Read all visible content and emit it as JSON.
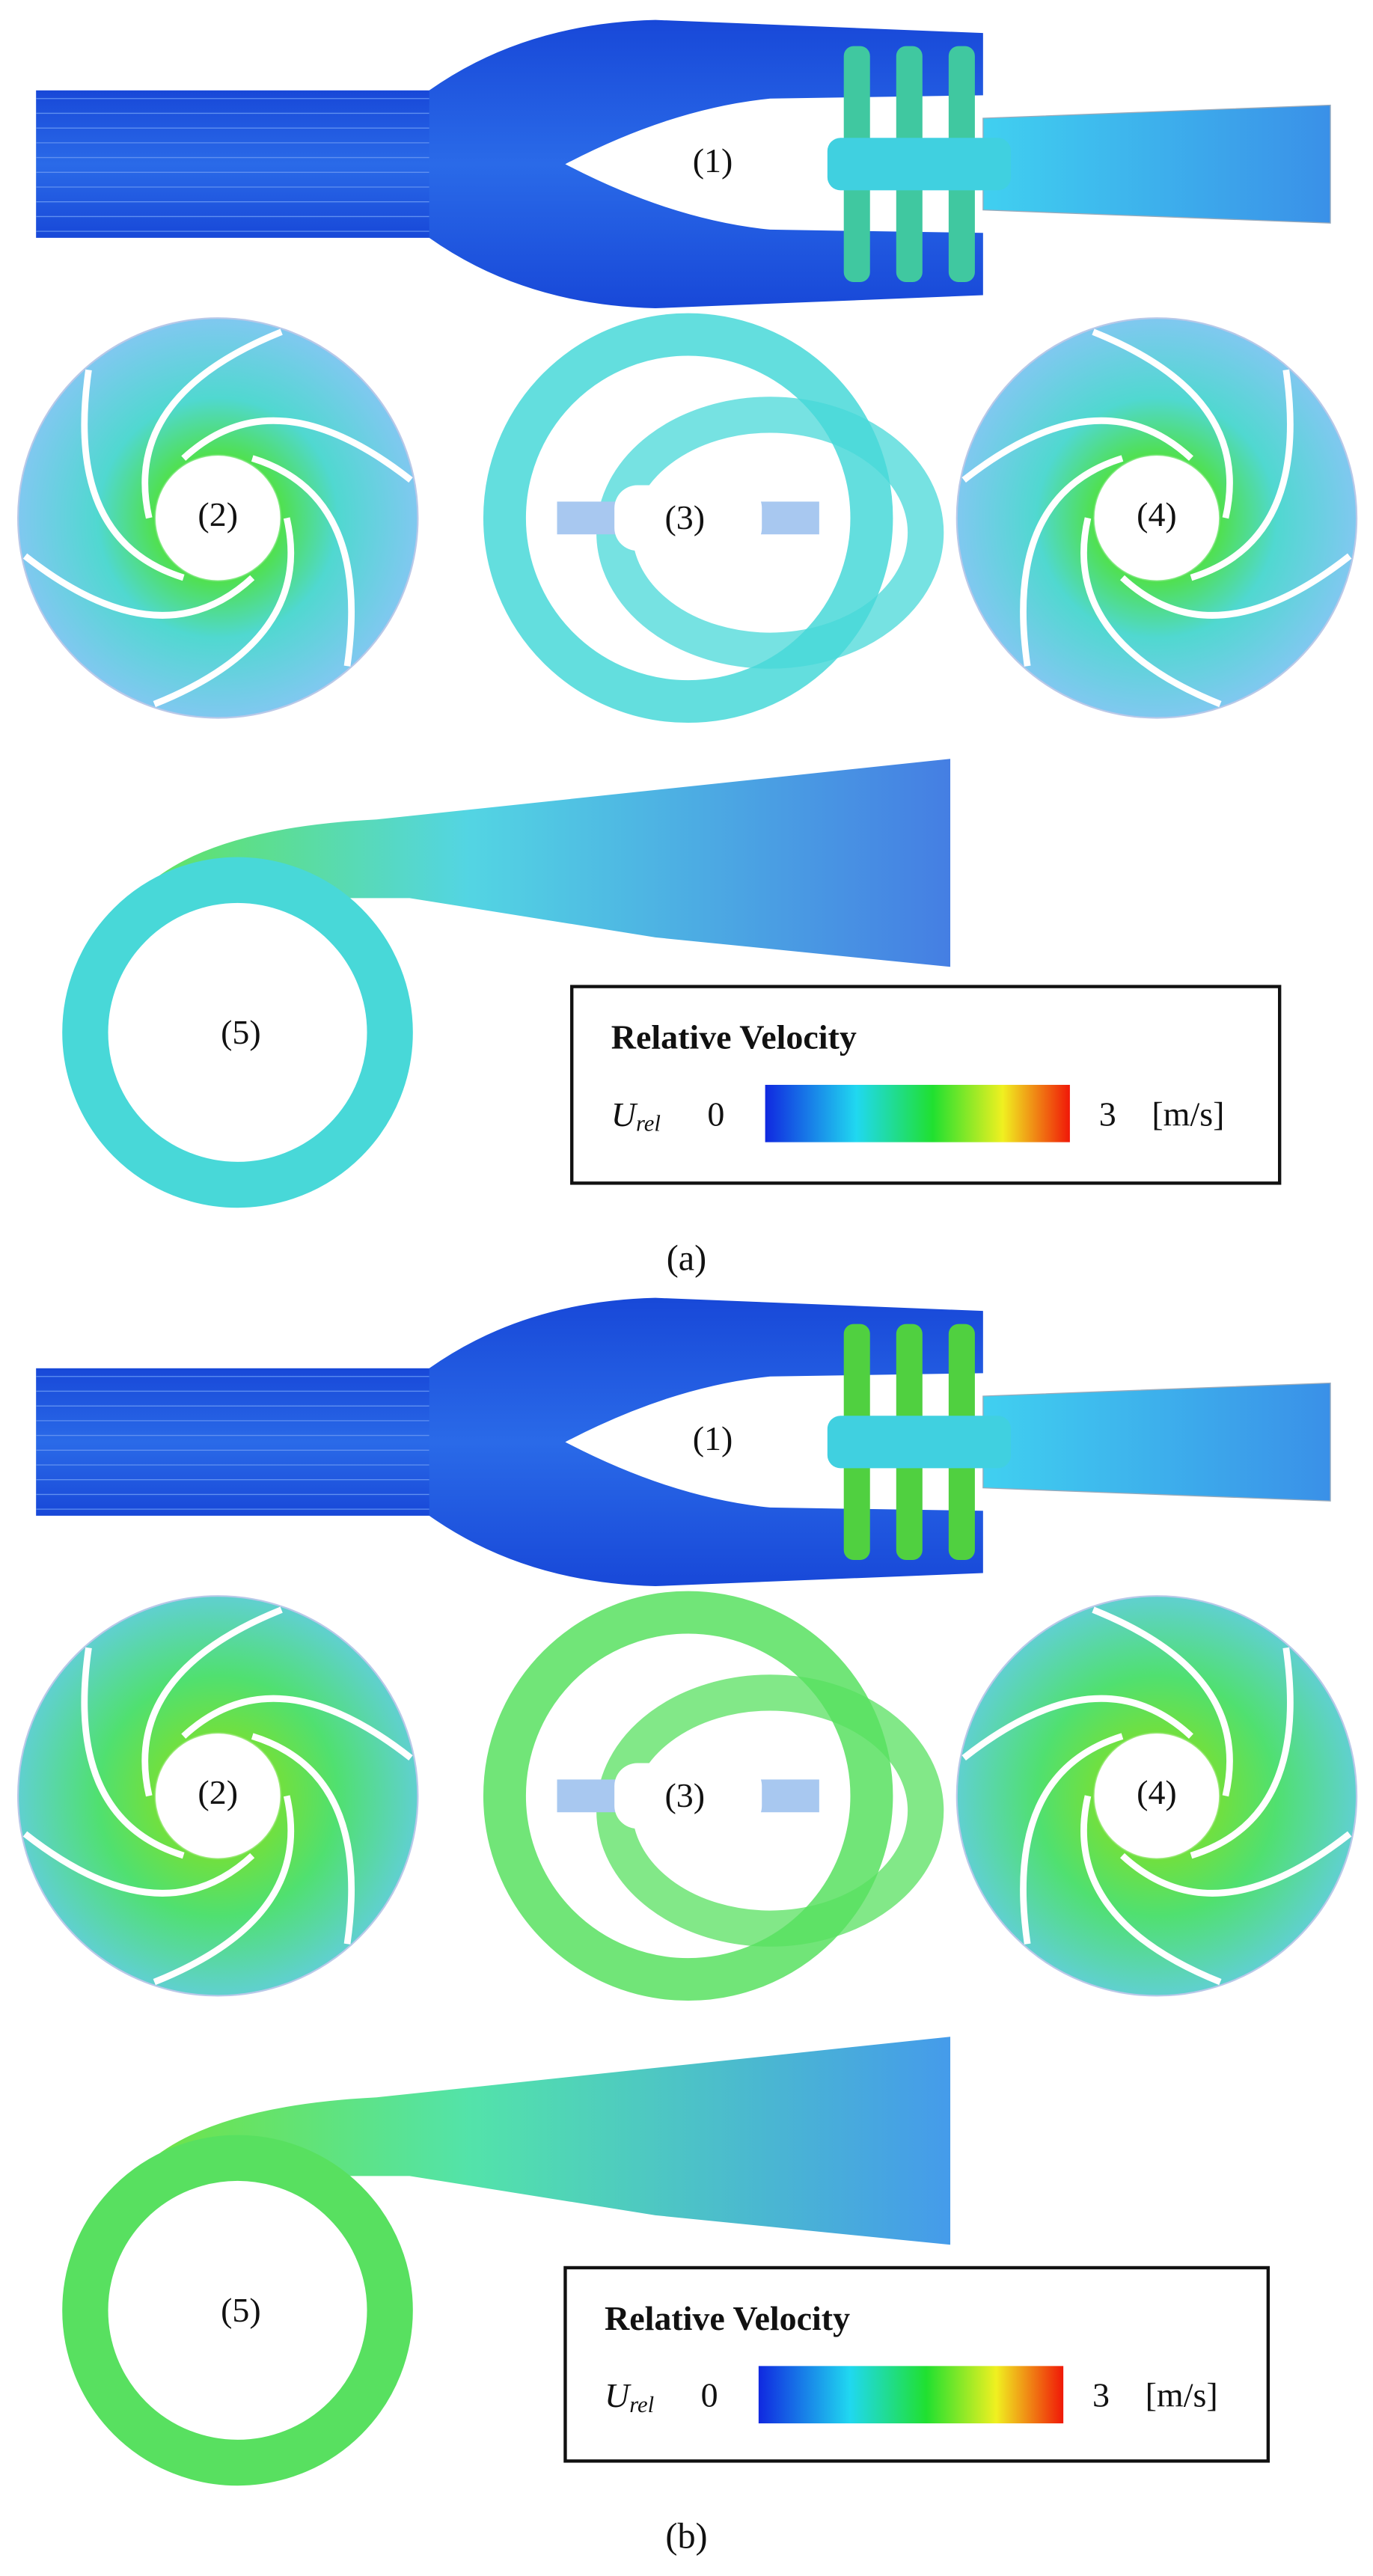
{
  "panels": [
    {
      "label": "(a)",
      "regions": [
        "(1)",
        "(2)",
        "(3)",
        "(4)",
        "(5)"
      ],
      "legend": {
        "title": "Relative Velocity",
        "symbol": "U",
        "subscript": "rel",
        "min": 0,
        "max": 3,
        "unit": "[m/s]"
      }
    },
    {
      "label": "(b)",
      "regions": [
        "(1)",
        "(2)",
        "(3)",
        "(4)",
        "(5)"
      ],
      "legend": {
        "title": "Relative Velocity",
        "symbol": "U",
        "subscript": "rel",
        "min": 0,
        "max": 3,
        "unit": "[m/s]"
      }
    }
  ]
}
